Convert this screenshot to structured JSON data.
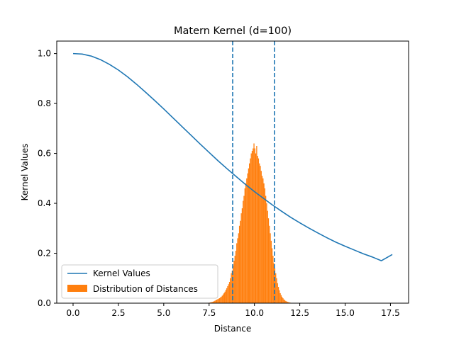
{
  "chart_data": {
    "type": "line",
    "title": "Matern Kernel (d=100)",
    "xlabel": "Distance",
    "ylabel": "Kernel Values",
    "xlim": [
      -0.9,
      18.5
    ],
    "ylim": [
      0.0,
      1.05
    ],
    "x_ticks": [
      0.0,
      2.5,
      5.0,
      7.5,
      10.0,
      12.5,
      15.0,
      17.5
    ],
    "x_tick_labels": [
      "0.0",
      "2.5",
      "5.0",
      "7.5",
      "10.0",
      "12.5",
      "15.0",
      "17.5"
    ],
    "y_ticks": [
      0.0,
      0.2,
      0.4,
      0.6,
      0.8,
      1.0
    ],
    "y_tick_labels": [
      "0.0",
      "0.2",
      "0.4",
      "0.6",
      "0.8",
      "1.0"
    ],
    "grid": false,
    "legend_position": "lower-left",
    "series": [
      {
        "name": "Kernel Values",
        "kind": "line",
        "color": "#1f77b4",
        "x": [
          0.0,
          0.5,
          1.0,
          1.5,
          2.0,
          2.5,
          3.0,
          3.5,
          4.0,
          4.5,
          5.0,
          5.5,
          6.0,
          6.5,
          7.0,
          7.5,
          8.0,
          8.5,
          9.0,
          9.5,
          10.0,
          10.5,
          11.0,
          11.5,
          12.0,
          12.5,
          13.0,
          13.5,
          14.0,
          14.5,
          15.0,
          15.5,
          16.0,
          16.5,
          17.0,
          17.6
        ],
        "y": [
          1.0,
          0.998,
          0.99,
          0.976,
          0.957,
          0.934,
          0.907,
          0.877,
          0.845,
          0.812,
          0.778,
          0.743,
          0.708,
          0.673,
          0.638,
          0.604,
          0.57,
          0.538,
          0.507,
          0.476,
          0.447,
          0.42,
          0.393,
          0.368,
          0.344,
          0.322,
          0.301,
          0.281,
          0.262,
          0.244,
          0.228,
          0.213,
          0.198,
          0.185,
          0.17,
          0.195
        ]
      },
      {
        "name": "Distribution of Distances",
        "kind": "histogram",
        "color": "#ff7f0e",
        "bin_edges_start": 7.5,
        "bin_width": 0.05,
        "heights": [
          0.002,
          0.003,
          0.004,
          0.005,
          0.006,
          0.008,
          0.01,
          0.012,
          0.014,
          0.016,
          0.018,
          0.02,
          0.023,
          0.026,
          0.03,
          0.035,
          0.04,
          0.046,
          0.053,
          0.06,
          0.068,
          0.076,
          0.085,
          0.1,
          0.12,
          0.13,
          0.15,
          0.17,
          0.19,
          0.21,
          0.24,
          0.26,
          0.28,
          0.31,
          0.33,
          0.36,
          0.38,
          0.41,
          0.43,
          0.46,
          0.48,
          0.5,
          0.52,
          0.54,
          0.56,
          0.58,
          0.6,
          0.61,
          0.62,
          0.64,
          0.62,
          0.6,
          0.63,
          0.59,
          0.58,
          0.56,
          0.55,
          0.53,
          0.51,
          0.5,
          0.48,
          0.46,
          0.43,
          0.4,
          0.37,
          0.34,
          0.31,
          0.28,
          0.25,
          0.22,
          0.19,
          0.16,
          0.14,
          0.12,
          0.1,
          0.08,
          0.065,
          0.052,
          0.04,
          0.032,
          0.025,
          0.02,
          0.015,
          0.012,
          0.009,
          0.007,
          0.005,
          0.004,
          0.003,
          0.002
        ]
      }
    ],
    "reference_lines": [
      {
        "x": 8.8,
        "color": "#1f77b4",
        "style": "dashed"
      },
      {
        "x": 11.1,
        "color": "#1f77b4",
        "style": "dashed"
      }
    ]
  }
}
